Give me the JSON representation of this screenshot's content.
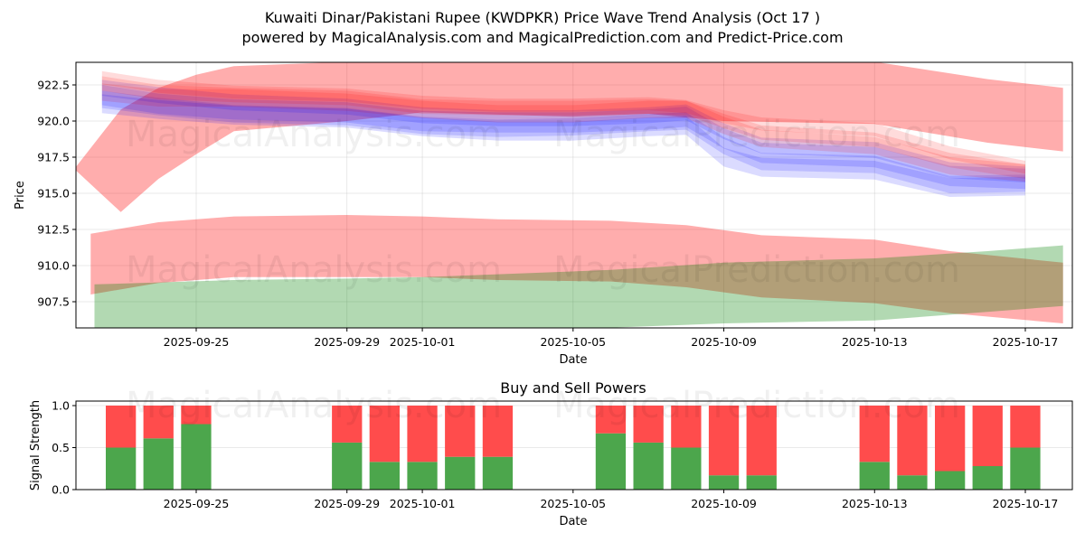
{
  "header": {
    "title": "Kuwaiti Dinar/Pakistani Rupee (KWDPKR) Price Wave Trend Analysis (Oct 17 )",
    "subtitle": "powered by MagicalAnalysis.com and MagicalPrediction.com and Predict-Price.com"
  },
  "watermarks": {
    "left": "MagicalAnalysis.com",
    "right": "MagicalPrediction.com"
  },
  "colors": {
    "red_band": "#ff0000",
    "blue_band": "#0000ff",
    "green_band": "#008000",
    "buy": "#4ca64c",
    "sell": "#ff4c4c",
    "grid": "#b0b0b0"
  },
  "chart_data": [
    {
      "type": "area",
      "title": "Price Wave Trend",
      "xlabel": "Date",
      "ylabel": "Price",
      "xlim": [
        "2025-09-21.8",
        "2025-10-18.25"
      ],
      "ylim": [
        905.7,
        924.05
      ],
      "grid": true,
      "x_ticks": [
        "2025-09-25",
        "2025-09-29",
        "2025-10-01",
        "2025-10-05",
        "2025-10-09",
        "2025-10-13",
        "2025-10-17"
      ],
      "y_ticks": [
        "907.5",
        "910.0",
        "912.5",
        "915.0",
        "917.5",
        "920.0",
        "922.5"
      ],
      "bands": [
        {
          "name": "upper-red-forecast-band",
          "color": "red",
          "opacity": 0.32,
          "x": [
            "2025-09-21.8",
            "2025-09-23",
            "2025-09-24",
            "2025-09-25",
            "2025-09-26",
            "2025-09-29",
            "2025-10-01",
            "2025-10-05",
            "2025-10-07",
            "2025-10-09",
            "2025-10-13",
            "2025-10-16",
            "2025-10-18"
          ],
          "upper": [
            916.8,
            920.8,
            922.3,
            923.2,
            923.8,
            924.1,
            924.1,
            924.1,
            924.1,
            924.1,
            924.1,
            922.9,
            922.3
          ],
          "lower": [
            916.6,
            913.7,
            916.0,
            917.7,
            919.3,
            920.0,
            920.6,
            920.3,
            920.5,
            920.0,
            919.8,
            918.5,
            917.9
          ]
        },
        {
          "name": "lower-red-forecast-band",
          "color": "red",
          "opacity": 0.32,
          "x": [
            "2025-09-22.2",
            "2025-09-24",
            "2025-09-26",
            "2025-09-29",
            "2025-10-01",
            "2025-10-03",
            "2025-10-06",
            "2025-10-08",
            "2025-10-10",
            "2025-10-13",
            "2025-10-15",
            "2025-10-18"
          ],
          "upper": [
            912.2,
            913.0,
            913.4,
            913.5,
            913.4,
            913.2,
            913.1,
            912.8,
            912.1,
            911.8,
            911.0,
            910.2
          ],
          "lower": [
            908.0,
            908.8,
            909.2,
            909.2,
            909.2,
            909.0,
            908.9,
            908.5,
            907.8,
            907.4,
            906.7,
            906.0
          ]
        },
        {
          "name": "green-forecast-band",
          "color": "green",
          "opacity": 0.3,
          "x": [
            "2025-09-22.3",
            "2025-09-26",
            "2025-09-29",
            "2025-10-01",
            "2025-10-03",
            "2025-10-06",
            "2025-10-09",
            "2025-10-13",
            "2025-10-16",
            "2025-10-18"
          ],
          "upper": [
            908.7,
            909.0,
            909.1,
            909.2,
            909.4,
            909.7,
            910.2,
            910.5,
            911.0,
            911.4
          ],
          "lower": [
            905.7,
            905.7,
            905.7,
            905.7,
            905.7,
            905.7,
            906.0,
            906.2,
            906.8,
            907.2
          ]
        }
      ],
      "waves": {
        "x": [
          "2025-09-22.5",
          "2025-09-24",
          "2025-09-26",
          "2025-09-29",
          "2025-10-01",
          "2025-10-03",
          "2025-10-05",
          "2025-10-07",
          "2025-10-08",
          "2025-10-09",
          "2025-10-10",
          "2025-10-13",
          "2025-10-15",
          "2025-10-17"
        ],
        "series": [
          {
            "name": "wave-1",
            "color": "blue",
            "center": [
              921.8,
              921.2,
              920.8,
              920.6,
              920.0,
              919.9,
              919.9,
              920.1,
              920.3,
              918.8,
              917.8,
              917.5,
              916.2,
              916.0
            ],
            "half_width": 0.7
          },
          {
            "name": "wave-2",
            "color": "blue",
            "center": [
              921.5,
              921.0,
              920.5,
              920.3,
              919.7,
              919.5,
              919.6,
              919.9,
              920.0,
              918.3,
              917.2,
              917.0,
              915.6,
              915.7
            ],
            "half_width": 0.6
          },
          {
            "name": "wave-3",
            "color": "blue",
            "center": [
              922.3,
              921.8,
              921.3,
              921.0,
              920.4,
              920.2,
              920.2,
              920.4,
              920.6,
              919.3,
              918.3,
              918.0,
              916.6,
              916.3
            ],
            "half_width": 0.55
          },
          {
            "name": "wave-4",
            "color": "red",
            "center": [
              922.0,
              921.6,
              921.6,
              921.3,
              920.8,
              920.5,
              920.5,
              920.8,
              920.8,
              919.7,
              918.8,
              918.3,
              916.9,
              916.4
            ],
            "half_width": 0.6
          },
          {
            "name": "wave-5",
            "color": "red",
            "center": [
              922.6,
              922.0,
              921.8,
              921.6,
              921.0,
              920.9,
              920.9,
              921.0,
              920.9,
              920.0,
              919.2,
              918.7,
              917.3,
              916.5
            ],
            "half_width": 0.5
          },
          {
            "name": "wave-6",
            "color": "blue",
            "center": [
              921.2,
              920.8,
              920.4,
              920.2,
              919.6,
              919.3,
              919.3,
              919.6,
              919.7,
              917.5,
              916.8,
              916.6,
              915.4,
              915.5
            ],
            "half_width": 0.65
          },
          {
            "name": "wave-7",
            "color": "red",
            "center": [
              923.0,
              922.4,
              922.0,
              921.8,
              921.3,
              921.1,
              921.1,
              921.2,
              921.0,
              920.3,
              919.8,
              919.4,
              917.8,
              916.8
            ],
            "half_width": 0.45
          }
        ]
      }
    },
    {
      "type": "bar",
      "title": "Buy and Sell Powers",
      "xlabel": "Date",
      "ylabel": "Signal Strength",
      "ylim": [
        0,
        1.05
      ],
      "grid": true,
      "x_ticks": [
        "2025-09-25",
        "2025-09-29",
        "2025-10-01",
        "2025-10-05",
        "2025-10-09",
        "2025-10-13",
        "2025-10-17"
      ],
      "y_ticks": [
        "0.0",
        "0.5",
        "1.0"
      ],
      "categories": [
        "2025-09-23",
        "2025-09-24",
        "2025-09-25",
        "2025-09-29",
        "2025-09-30",
        "2025-10-01",
        "2025-10-02",
        "2025-10-03",
        "2025-10-06",
        "2025-10-07",
        "2025-10-08",
        "2025-10-09",
        "2025-10-10",
        "2025-10-13",
        "2025-10-14",
        "2025-10-15",
        "2025-10-16",
        "2025-10-17"
      ],
      "series": [
        {
          "name": "Buy",
          "color": "green",
          "values": [
            0.5,
            0.61,
            0.78,
            0.56,
            0.33,
            0.33,
            0.39,
            0.39,
            0.67,
            0.56,
            0.5,
            0.17,
            0.17,
            0.33,
            0.17,
            0.22,
            0.28,
            0.5
          ]
        },
        {
          "name": "Sell",
          "color": "red",
          "values": [
            0.5,
            0.39,
            0.22,
            0.44,
            0.67,
            0.67,
            0.61,
            0.61,
            0.33,
            0.44,
            0.5,
            0.83,
            0.83,
            0.67,
            0.83,
            0.78,
            0.72,
            0.5
          ]
        }
      ]
    }
  ]
}
